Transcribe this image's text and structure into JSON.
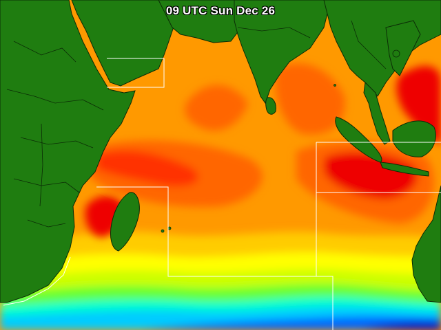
{
  "map": {
    "title": "09 UTC Sun Dec 26",
    "colors": {
      "land": "#1f7d10",
      "border": "#0b2b06",
      "box": "#ffffff",
      "sst_scale": [
        "#0000cc",
        "#0066ff",
        "#00ccff",
        "#00ffcc",
        "#66ff33",
        "#ccff00",
        "#ffff00",
        "#ffcc00",
        "#ff9900",
        "#ff6600",
        "#ff3300",
        "#ee0000"
      ]
    }
  }
}
